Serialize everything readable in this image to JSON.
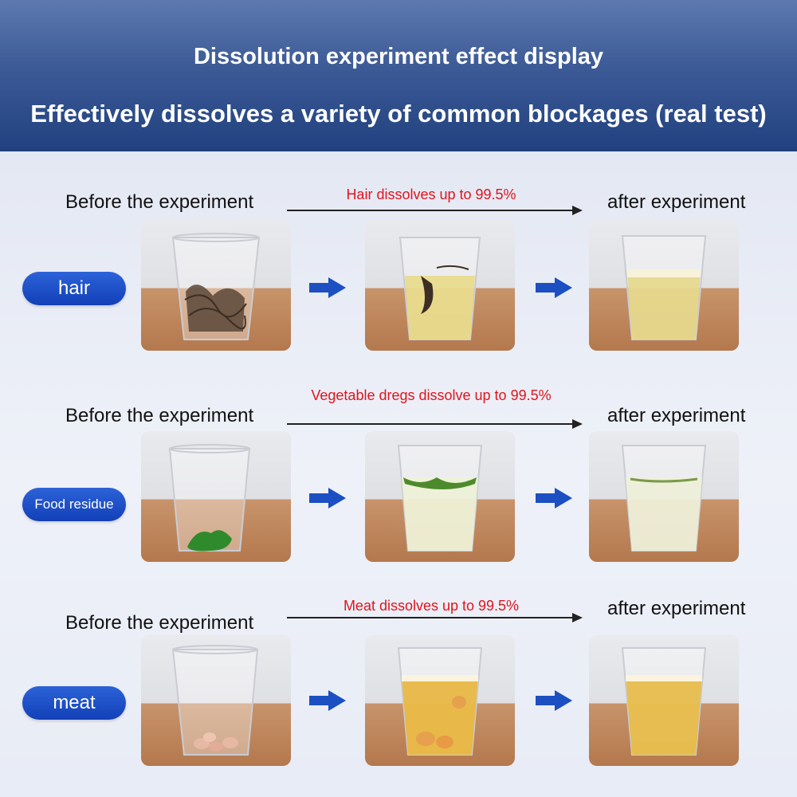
{
  "header": {
    "title": "Dissolution experiment effect display",
    "subtitle": "Effectively dissolves a variety of common blockages (real test)"
  },
  "colors": {
    "banner": "#2a4a8a",
    "accent_red": "#e0141e",
    "pill_blue": "#1a4ec8",
    "arrow_blue": "#1b4fc2"
  },
  "rows": [
    {
      "category": "hair",
      "before_label": "Before the experiment",
      "after_label": "after experiment",
      "result_text": "Hair dissolves up to 99.5%"
    },
    {
      "category": "Food residue",
      "before_label": "Before the experiment",
      "after_label": "after experiment",
      "result_text": "Vegetable dregs dissolve up to 99.5%"
    },
    {
      "category": "meat",
      "before_label": "Before the experiment",
      "after_label": "after experiment",
      "result_text": "Meat dissolves up to 99.5%"
    }
  ]
}
